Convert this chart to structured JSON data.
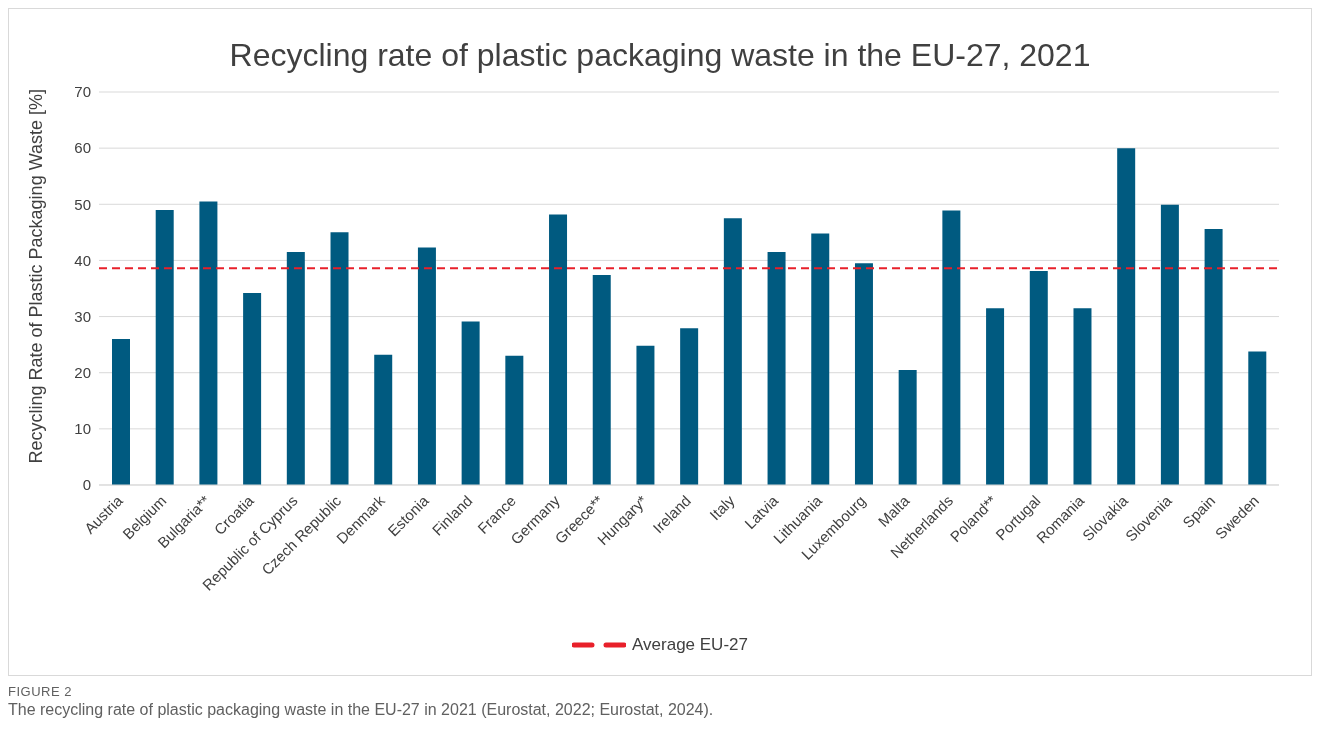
{
  "chart_data": {
    "type": "bar",
    "title": "Recycling rate of plastic packaging waste in the EU-27, 2021",
    "ylabel": "Recycling Rate of Plastic Packaging Waste [%]",
    "categories": [
      "Austria",
      "Belgium",
      "Bulgaria**",
      "Croatia",
      "Republic of Cyprus",
      "Czech Republic",
      "Denmark",
      "Estonia",
      "Finland",
      "France",
      "Germany",
      "Greece**",
      "Hungary*",
      "Ireland",
      "Italy",
      "Latvia",
      "Lithuania",
      "Luxembourg",
      "Malta",
      "Netherlands",
      "Poland**",
      "Portugal",
      "Romania",
      "Slovakia",
      "Slovenia",
      "Spain",
      "Sweden"
    ],
    "values": [
      26,
      49,
      50.5,
      34.2,
      41.5,
      45,
      23.2,
      42.3,
      29.1,
      23,
      48.2,
      37.4,
      24.8,
      27.9,
      47.5,
      41.5,
      44.8,
      39.5,
      20.5,
      48.9,
      31.5,
      38.1,
      31.5,
      60,
      49.9,
      45.6,
      23.8
    ],
    "color": "#005a80",
    "ylim": [
      0,
      70
    ],
    "yticks": [
      0,
      10,
      20,
      30,
      40,
      50,
      60,
      70
    ],
    "grid": "y",
    "ref_lines": [
      {
        "axis": "y",
        "value": 38.6,
        "label": "Average EU-27",
        "color": "#e8202a",
        "line_style": "dashed"
      }
    ],
    "legend": "bottom",
    "annotations": [
      "FIGURE 2",
      "The recycling rate of plastic packaging waste in the EU-27 in 2021 (Eurostat, 2022; Eurostat, 2024)."
    ]
  }
}
